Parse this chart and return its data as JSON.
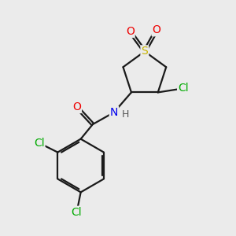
{
  "background_color": "#ebebeb",
  "bond_color": "#1a1a1a",
  "atom_colors": {
    "S": "#c8b400",
    "O": "#ee0000",
    "N": "#0000ee",
    "Cl": "#00aa00",
    "H": "#555555",
    "C": "#1a1a1a"
  },
  "font_size": 10,
  "linewidth": 1.6
}
